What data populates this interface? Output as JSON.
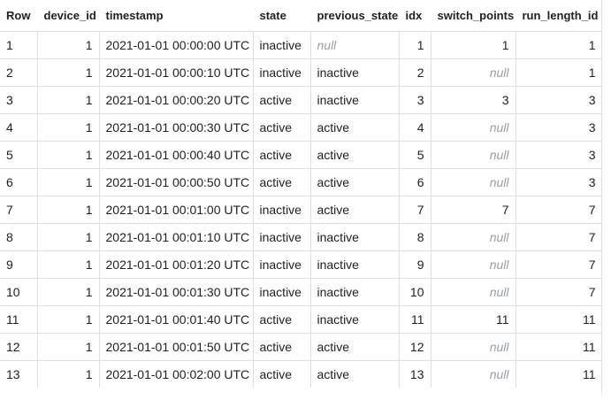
{
  "columns": [
    "Row",
    "device_id",
    "timestamp",
    "state",
    "previous_state",
    "idx",
    "switch_points",
    "run_length_id"
  ],
  "rows": [
    [
      "1",
      "1",
      "2021-01-01 00:00:00 UTC",
      "inactive",
      "null",
      "1",
      "1",
      "1"
    ],
    [
      "2",
      "1",
      "2021-01-01 00:00:10 UTC",
      "inactive",
      "inactive",
      "2",
      "null",
      "1"
    ],
    [
      "3",
      "1",
      "2021-01-01 00:00:20 UTC",
      "active",
      "inactive",
      "3",
      "3",
      "3"
    ],
    [
      "4",
      "1",
      "2021-01-01 00:00:30 UTC",
      "active",
      "active",
      "4",
      "null",
      "3"
    ],
    [
      "5",
      "1",
      "2021-01-01 00:00:40 UTC",
      "active",
      "active",
      "5",
      "null",
      "3"
    ],
    [
      "6",
      "1",
      "2021-01-01 00:00:50 UTC",
      "active",
      "active",
      "6",
      "null",
      "3"
    ],
    [
      "7",
      "1",
      "2021-01-01 00:01:00 UTC",
      "inactive",
      "active",
      "7",
      "7",
      "7"
    ],
    [
      "8",
      "1",
      "2021-01-01 00:01:10 UTC",
      "inactive",
      "inactive",
      "8",
      "null",
      "7"
    ],
    [
      "9",
      "1",
      "2021-01-01 00:01:20 UTC",
      "inactive",
      "inactive",
      "9",
      "null",
      "7"
    ],
    [
      "10",
      "1",
      "2021-01-01 00:01:30 UTC",
      "inactive",
      "inactive",
      "10",
      "null",
      "7"
    ],
    [
      "11",
      "1",
      "2021-01-01 00:01:40 UTC",
      "active",
      "inactive",
      "11",
      "11",
      "11"
    ],
    [
      "12",
      "1",
      "2021-01-01 00:01:50 UTC",
      "active",
      "active",
      "12",
      "null",
      "11"
    ],
    [
      "13",
      "1",
      "2021-01-01 00:02:00 UTC",
      "active",
      "active",
      "13",
      "null",
      "11"
    ]
  ]
}
